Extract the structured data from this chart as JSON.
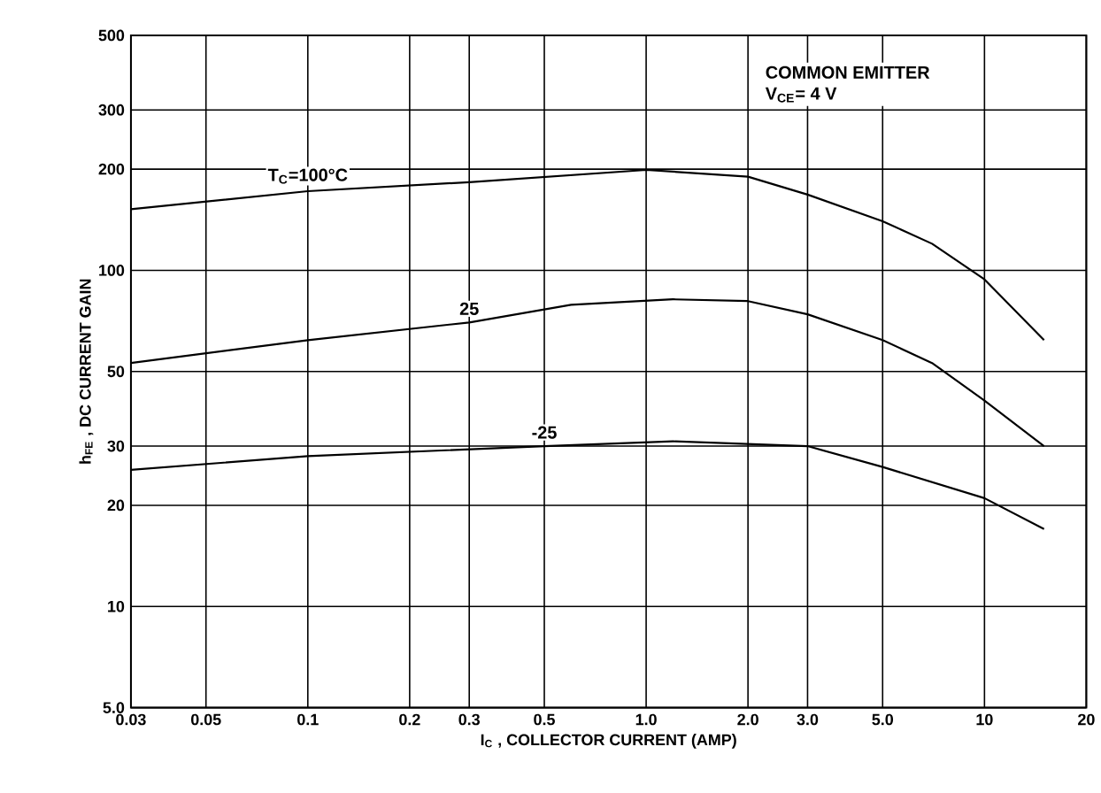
{
  "chart_data": {
    "type": "line",
    "xlabel": "I$_{C}$ , COLLECTOR CURRENT (AMP)",
    "ylabel": "h$_{FE}$ , DC CURRENT GAIN",
    "annotations": [
      "COMMON EMITTER",
      "V$_{CE}$= 4 V"
    ],
    "log": "xy",
    "grid": true,
    "legend": false,
    "marker": "none",
    "line_style": "solid",
    "xlim": [
      0.03,
      20
    ],
    "ylim": [
      5,
      500
    ],
    "xticks": [
      0.03,
      0.05,
      0.1,
      0.2,
      0.3,
      0.5,
      {
        "value": 1,
        "label": "1.0"
      },
      {
        "value": 2,
        "label": "2.0"
      },
      {
        "value": 3,
        "label": "3.0"
      },
      {
        "value": 5,
        "label": "5.0"
      },
      10,
      20
    ],
    "yticks": [
      {
        "value": 5,
        "label": "5.0"
      },
      10,
      20,
      30,
      50,
      100,
      200,
      300,
      500
    ],
    "series": [
      {
        "name": "T$_{C}$=100°C",
        "color": "#000000",
        "x": [
          0.03,
          0.1,
          0.3,
          1.0,
          2.0,
          3.0,
          5.0,
          7.0,
          10,
          15
        ],
        "values": [
          152,
          172,
          183,
          199,
          190,
          168,
          140,
          120,
          94,
          62
        ]
      },
      {
        "name": "25",
        "color": "#000000",
        "x": [
          0.03,
          0.1,
          0.3,
          0.6,
          1.2,
          2.0,
          3.0,
          5.0,
          7.0,
          10,
          15
        ],
        "values": [
          53,
          62,
          70,
          79,
          82,
          81,
          74,
          62,
          53,
          41,
          30
        ]
      },
      {
        "name": "-25",
        "color": "#000000",
        "x": [
          0.03,
          0.1,
          0.5,
          1.2,
          3.0,
          5.0,
          10,
          15
        ],
        "values": [
          25.5,
          28,
          30,
          31,
          30,
          26,
          21,
          17
        ]
      }
    ]
  }
}
